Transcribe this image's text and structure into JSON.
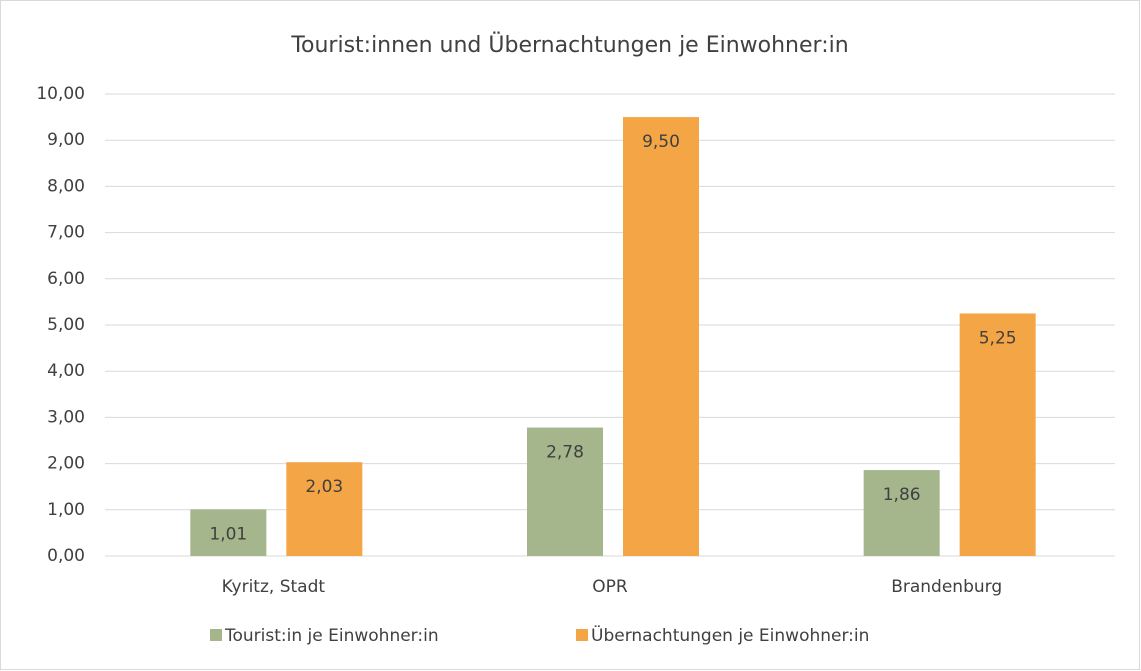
{
  "chart_data": {
    "type": "bar",
    "title": "Tourist:innen und Übernachtungen je Einwohner:in",
    "categories": [
      "Kyritz, Stadt",
      "OPR",
      "Brandenburg"
    ],
    "series": [
      {
        "name": "Tourist:in je Einwohner:in",
        "color": "#a5b68d",
        "values": [
          1.01,
          2.78,
          1.86
        ],
        "value_labels": [
          "1,01",
          "2,78",
          "1,86"
        ]
      },
      {
        "name": "Übernachtungen je Einwohner:in",
        "color": "#f4a545",
        "values": [
          2.03,
          9.5,
          5.25
        ],
        "value_labels": [
          "2,03",
          "9,50",
          "5,25"
        ]
      }
    ],
    "ylim": [
      0,
      10
    ],
    "yticks": [
      {
        "value": 0,
        "label": "0,00"
      },
      {
        "value": 1,
        "label": "1,00"
      },
      {
        "value": 2,
        "label": "2,00"
      },
      {
        "value": 3,
        "label": "3,00"
      },
      {
        "value": 4,
        "label": "4,00"
      },
      {
        "value": 5,
        "label": "5,00"
      },
      {
        "value": 6,
        "label": "6,00"
      },
      {
        "value": 7,
        "label": "7,00"
      },
      {
        "value": 8,
        "label": "8,00"
      },
      {
        "value": 9,
        "label": "9,00"
      },
      {
        "value": 10,
        "label": "10,00"
      }
    ],
    "grid": true,
    "legend": "bottom"
  }
}
